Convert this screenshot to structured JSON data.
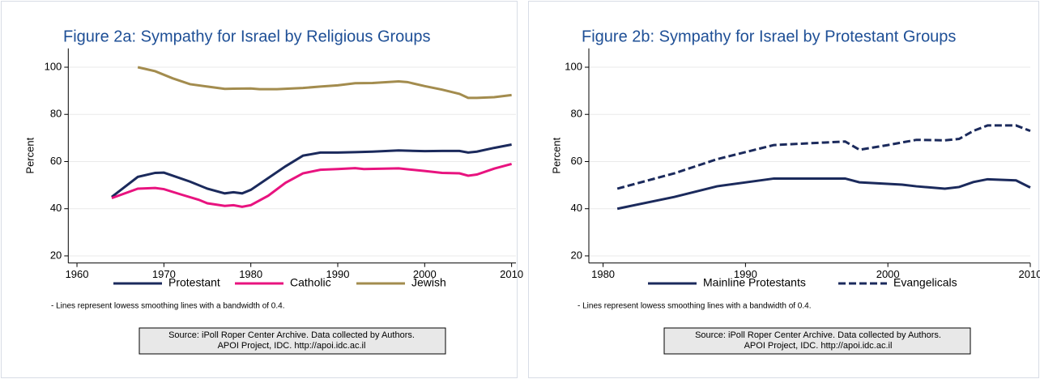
{
  "chart_data": [
    {
      "type": "line",
      "title": "Figure 2a: Sympathy for Israel by Religious Groups",
      "y_label": "Percent",
      "xlim": [
        1959,
        2010.5
      ],
      "ylim": [
        17,
        108
      ],
      "xticks": [
        1960,
        1970,
        1980,
        1990,
        2000,
        2010
      ],
      "yticks": [
        20,
        40,
        60,
        80,
        100
      ],
      "grid": true,
      "series": [
        {
          "name": "Protestant",
          "color": "#1b2a5c",
          "dash": "solid",
          "x": [
            1964,
            1967,
            1969,
            1970,
            1973,
            1975,
            1977,
            1978,
            1979,
            1980,
            1982,
            1984,
            1986,
            1988,
            1990,
            1992,
            1994,
            1997,
            2000,
            2002,
            2004,
            2005,
            2006,
            2008,
            2010
          ],
          "values": [
            45,
            53.5,
            55.2,
            55.3,
            51.5,
            48.5,
            46.5,
            47,
            46.5,
            48,
            53,
            58,
            62.5,
            63.8,
            63.8,
            64,
            64.2,
            64.7,
            64.4,
            64.5,
            64.5,
            63.8,
            64.2,
            65.8,
            67.2
          ]
        },
        {
          "name": "Catholic",
          "color": "#e8137f",
          "dash": "solid",
          "x": [
            1964,
            1967,
            1969,
            1970,
            1972,
            1974,
            1975,
            1977,
            1978,
            1979,
            1980,
            1982,
            1984,
            1986,
            1988,
            1990,
            1992,
            1993,
            1997,
            2000,
            2002,
            2004,
            2005,
            2006,
            2008,
            2010
          ],
          "values": [
            44.5,
            48.5,
            48.8,
            48.3,
            46,
            43.8,
            42.3,
            41.2,
            41.5,
            40.8,
            41.5,
            45.5,
            51,
            55,
            56.5,
            56.8,
            57.2,
            56.8,
            57.1,
            56,
            55.2,
            55,
            54,
            54.5,
            57,
            59
          ]
        },
        {
          "name": "Jewish",
          "color": "#a38c4e",
          "dash": "solid",
          "x": [
            1967,
            1969,
            1971,
            1973,
            1975,
            1977,
            1978,
            1980,
            1981,
            1983,
            1986,
            1988,
            1990,
            1992,
            1994,
            1997,
            1998,
            2000,
            2002,
            2004,
            2005,
            2006,
            2008,
            2010
          ],
          "values": [
            100,
            98.3,
            95.3,
            92.8,
            91.8,
            90.8,
            90.9,
            91,
            90.7,
            90.7,
            91.2,
            91.8,
            92.3,
            93.2,
            93.3,
            94,
            93.7,
            92,
            90.5,
            88.7,
            87,
            87,
            87.3,
            88.2
          ]
        }
      ],
      "note": "- Lines represent lowess smoothing lines with a bandwidth of 0.4.",
      "source": [
        "Source: iPoll Roper Center Archive. Data collected by Authors.",
        "APOI Project, IDC. http://apoi.idc.ac.il"
      ]
    },
    {
      "type": "line",
      "title": "Figure 2b: Sympathy for Israel by Protestant Groups",
      "y_label": "Percent",
      "xlim": [
        1979,
        2010
      ],
      "ylim": [
        17,
        108
      ],
      "xticks": [
        1980,
        1990,
        2000,
        2010
      ],
      "yticks": [
        20,
        40,
        60,
        80,
        100
      ],
      "grid": true,
      "series": [
        {
          "name": "Mainline Protestants",
          "color": "#1b2a5c",
          "dash": "solid",
          "x": [
            1981,
            1985,
            1988,
            1992,
            1997,
            1998,
            2001,
            2002,
            2004,
            2005,
            2006,
            2007,
            2009,
            2010
          ],
          "values": [
            40,
            45,
            49.5,
            52.8,
            52.8,
            51.2,
            50.2,
            49.5,
            48.5,
            49.2,
            51.3,
            52.5,
            52,
            49
          ]
        },
        {
          "name": "Evangelicals",
          "color": "#1b2a5c",
          "dash": "dashed",
          "x": [
            1981,
            1985,
            1988,
            1990,
            1992,
            1997,
            1998,
            2000,
            2002,
            2004,
            2005,
            2006,
            2007,
            2009,
            2010
          ],
          "values": [
            48.5,
            55,
            61,
            64,
            67,
            68.5,
            65,
            67,
            69.2,
            69,
            69.6,
            73,
            75.3,
            75.3,
            73
          ]
        }
      ],
      "note": "- Lines represent lowess smoothing lines with a bandwidth of 0.4.",
      "source": [
        "Source: iPoll Roper Center Archive. Data collected by Authors.",
        "APOI Project, IDC. http://apoi.idc.ac.il"
      ]
    }
  ]
}
